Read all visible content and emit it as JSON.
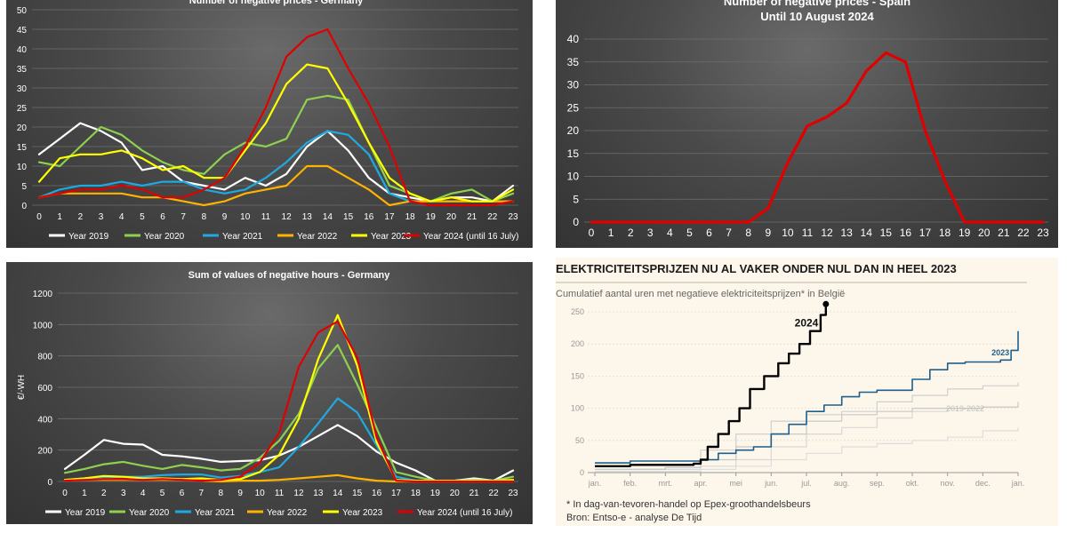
{
  "chart_data": [
    {
      "id": "de_count",
      "type": "line",
      "title": "Number of negative prices - Germany",
      "xlabel": "",
      "ylabel": "",
      "x": [
        0,
        1,
        2,
        3,
        4,
        5,
        6,
        7,
        8,
        9,
        10,
        11,
        12,
        13,
        14,
        15,
        16,
        17,
        18,
        19,
        20,
        21,
        22,
        23
      ],
      "ylim": [
        0,
        50
      ],
      "yticks": [
        0,
        5,
        10,
        15,
        20,
        25,
        30,
        35,
        40,
        45,
        50
      ],
      "grid": true,
      "legend": "bottom",
      "series": [
        {
          "name": "Year 2019",
          "color": "#ffffff",
          "values": [
            13,
            17,
            21,
            19,
            16,
            9,
            10,
            6,
            5,
            4,
            7,
            5,
            8,
            15,
            19,
            14,
            7,
            3,
            2,
            1,
            2,
            2,
            1,
            5
          ]
        },
        {
          "name": "Year 2020",
          "color": "#8fd14f",
          "values": [
            11,
            10,
            15,
            20,
            18,
            14,
            11,
            9,
            8,
            13,
            16,
            15,
            17,
            27,
            28,
            27,
            16,
            5,
            3,
            1,
            3,
            4,
            1,
            3
          ]
        },
        {
          "name": "Year 2021",
          "color": "#1fa9e1",
          "values": [
            2,
            4,
            5,
            5,
            6,
            5,
            6,
            6,
            4,
            3,
            4,
            7,
            11,
            16,
            19,
            18,
            13,
            3,
            1,
            1,
            1,
            1,
            1,
            1
          ]
        },
        {
          "name": "Year 2022",
          "color": "#ffb300",
          "values": [
            2,
            3,
            3,
            3,
            3,
            2,
            2,
            1,
            0,
            1,
            3,
            4,
            5,
            10,
            10,
            7,
            4,
            0,
            1,
            1,
            1,
            1,
            1,
            1
          ]
        },
        {
          "name": "Year 2023",
          "color": "#ffff00",
          "values": [
            6,
            12,
            13,
            13,
            14,
            12,
            9,
            10,
            7,
            7,
            14,
            21,
            31,
            36,
            35,
            26,
            16,
            7,
            3,
            1,
            2,
            1,
            1,
            4
          ]
        },
        {
          "name": "Year 2024 (until 16 July)",
          "color": "#e00000",
          "values": [
            2,
            3,
            4,
            4,
            5,
            4,
            2,
            2,
            4,
            7,
            15,
            25,
            38,
            43,
            45,
            35,
            26,
            15,
            1,
            0,
            0,
            0,
            0,
            1
          ]
        }
      ]
    },
    {
      "id": "es_count",
      "type": "line",
      "title": "Number of negative prices - Spain",
      "subtitle": "Until 10 August 2024",
      "xlabel": "",
      "ylabel": "",
      "x": [
        0,
        1,
        2,
        3,
        4,
        5,
        6,
        7,
        8,
        9,
        10,
        11,
        12,
        13,
        14,
        15,
        16,
        17,
        18,
        19,
        20,
        21,
        22,
        23
      ],
      "ylim": [
        0,
        40
      ],
      "yticks": [
        0,
        5,
        10,
        15,
        20,
        25,
        30,
        35,
        40
      ],
      "grid": true,
      "series": [
        {
          "color": "#e00000",
          "values": [
            0,
            0,
            0,
            0,
            0,
            0,
            0,
            0,
            0,
            3,
            13,
            21,
            23,
            26,
            33,
            37,
            35,
            20,
            9,
            0,
            0,
            0,
            0,
            0
          ]
        }
      ]
    },
    {
      "id": "de_sum",
      "type": "line",
      "title": "Sum of values of negative hours - Germany",
      "xlabel": "",
      "ylabel": "€/-WH",
      "x": [
        0,
        1,
        2,
        3,
        4,
        5,
        6,
        7,
        8,
        9,
        10,
        11,
        12,
        13,
        14,
        15,
        16,
        17,
        18,
        19,
        20,
        21,
        22,
        23
      ],
      "ylim": [
        0,
        1200
      ],
      "yticks": [
        0,
        200,
        400,
        600,
        800,
        1000,
        1200
      ],
      "grid": true,
      "legend": "bottom",
      "series": [
        {
          "name": "Year 2019",
          "color": "#ffffff",
          "values": [
            80,
            170,
            265,
            240,
            235,
            170,
            160,
            145,
            125,
            130,
            135,
            165,
            220,
            290,
            360,
            290,
            190,
            120,
            70,
            5,
            5,
            20,
            5,
            70
          ]
        },
        {
          "name": "Year 2020",
          "color": "#8fd14f",
          "values": [
            55,
            80,
            110,
            125,
            100,
            80,
            105,
            90,
            70,
            80,
            150,
            260,
            430,
            720,
            870,
            620,
            340,
            60,
            30,
            5,
            5,
            10,
            5,
            30
          ]
        },
        {
          "name": "Year 2021",
          "color": "#1fa9e1",
          "values": [
            10,
            20,
            25,
            30,
            30,
            40,
            45,
            45,
            25,
            35,
            60,
            90,
            220,
            370,
            530,
            440,
            230,
            30,
            5,
            5,
            5,
            5,
            5,
            5
          ]
        },
        {
          "name": "Year 2022",
          "color": "#ffb300",
          "values": [
            5,
            10,
            10,
            10,
            10,
            10,
            10,
            5,
            0,
            5,
            5,
            10,
            20,
            30,
            40,
            20,
            5,
            0,
            0,
            0,
            0,
            0,
            0,
            0
          ]
        },
        {
          "name": "Year 2023",
          "color": "#ffff00",
          "values": [
            10,
            20,
            35,
            30,
            20,
            20,
            15,
            20,
            10,
            15,
            60,
            170,
            400,
            780,
            1060,
            740,
            250,
            10,
            5,
            5,
            5,
            5,
            5,
            10
          ]
        },
        {
          "name": "Year 2024 (until 16 July)",
          "color": "#e00000",
          "values": [
            5,
            10,
            15,
            15,
            10,
            15,
            10,
            5,
            10,
            30,
            120,
            310,
            730,
            950,
            1020,
            790,
            280,
            5,
            0,
            0,
            0,
            0,
            0,
            0
          ]
        }
      ]
    },
    {
      "id": "be_cumulative",
      "type": "line",
      "title": "ELEKTRICITEITSPRIJZEN NU AL VAKER ONDER NUL DAN IN HEEL 2023",
      "subtitle": "Cumulatief aantal uren met negatieve elektriciteitsprijzen* in België",
      "xlabel": "",
      "ylabel": "",
      "x": [
        "jan.",
        "feb.",
        "mrt.",
        "apr.",
        "mei",
        "jun.",
        "jul.",
        "aug.",
        "sep.",
        "okt.",
        "nov.",
        "dec.",
        "jan."
      ],
      "ylim": [
        0,
        250
      ],
      "yticks": [
        0,
        50,
        100,
        150,
        200,
        250
      ],
      "grid": true,
      "footnote": "* In dag-van-tevoren-handel op Epex-groothandelsbeurs",
      "source": "Bron: Entso-e - analyse De Tijd",
      "series": [
        {
          "name": "2024",
          "color": "#000000",
          "points": [
            [
              0,
              10
            ],
            [
              1,
              12
            ],
            [
              2,
              12
            ],
            [
              2.8,
              14
            ],
            [
              3.0,
              20
            ],
            [
              3.2,
              40
            ],
            [
              3.5,
              60
            ],
            [
              3.8,
              80
            ],
            [
              4.1,
              100
            ],
            [
              4.4,
              130
            ],
            [
              4.8,
              150
            ],
            [
              5.2,
              170
            ],
            [
              5.5,
              185
            ],
            [
              5.8,
              200
            ],
            [
              6.1,
              220
            ],
            [
              6.4,
              245
            ],
            [
              6.55,
              262
            ]
          ]
        },
        {
          "name": "2023",
          "color": "#1f5f8b",
          "points": [
            [
              0,
              15
            ],
            [
              1,
              18
            ],
            [
              2,
              18
            ],
            [
              3,
              20
            ],
            [
              3.5,
              30
            ],
            [
              4,
              35
            ],
            [
              4.5,
              40
            ],
            [
              5,
              60
            ],
            [
              5.5,
              75
            ],
            [
              6,
              95
            ],
            [
              6.5,
              105
            ],
            [
              7,
              118
            ],
            [
              7.5,
              125
            ],
            [
              8,
              128
            ],
            [
              8.5,
              128
            ],
            [
              9,
              145
            ],
            [
              9.5,
              160
            ],
            [
              10,
              170
            ],
            [
              10.5,
              172
            ],
            [
              11,
              172
            ],
            [
              11.5,
              175
            ],
            [
              11.8,
              190
            ],
            [
              12,
              220
            ]
          ]
        },
        {
          "name": "2019-2022",
          "color": "#c8c8c8",
          "points": [
            [
              0,
              5
            ],
            [
              2,
              8
            ],
            [
              3,
              20
            ],
            [
              4,
              40
            ],
            [
              5,
              60
            ],
            [
              6,
              80
            ],
            [
              7,
              90
            ],
            [
              8,
              95
            ],
            [
              9,
              100
            ],
            [
              10,
              100
            ],
            [
              11,
              102
            ],
            [
              12,
              110
            ]
          ]
        },
        {
          "name": "",
          "color": "#cfcfcf",
          "points": [
            [
              0,
              5
            ],
            [
              2,
              8
            ],
            [
              3,
              35
            ],
            [
              4,
              60
            ],
            [
              5,
              80
            ],
            [
              6,
              90
            ],
            [
              7,
              95
            ],
            [
              8,
              110
            ],
            [
              9,
              120
            ],
            [
              10,
              130
            ],
            [
              11,
              135
            ],
            [
              12,
              140
            ]
          ]
        },
        {
          "name": "",
          "color": "#d8d8d8",
          "points": [
            [
              0,
              5
            ],
            [
              3,
              10
            ],
            [
              4,
              20
            ],
            [
              5,
              40
            ],
            [
              6,
              60
            ],
            [
              7,
              70
            ],
            [
              8,
              85
            ],
            [
              9,
              95
            ],
            [
              10,
              100
            ],
            [
              11,
              102
            ],
            [
              12,
              105
            ]
          ]
        },
        {
          "name": "",
          "color": "#dddddd",
          "points": [
            [
              0,
              2
            ],
            [
              3,
              5
            ],
            [
              4,
              10
            ],
            [
              5,
              20
            ],
            [
              6,
              30
            ],
            [
              7,
              40
            ],
            [
              8,
              45
            ],
            [
              9,
              50
            ],
            [
              10,
              55
            ],
            [
              11,
              65
            ],
            [
              12,
              70
            ]
          ]
        }
      ],
      "series_labels": {
        "s2024": "2024",
        "s2023": "2023",
        "s2019_2022": "2019-2022"
      }
    }
  ]
}
